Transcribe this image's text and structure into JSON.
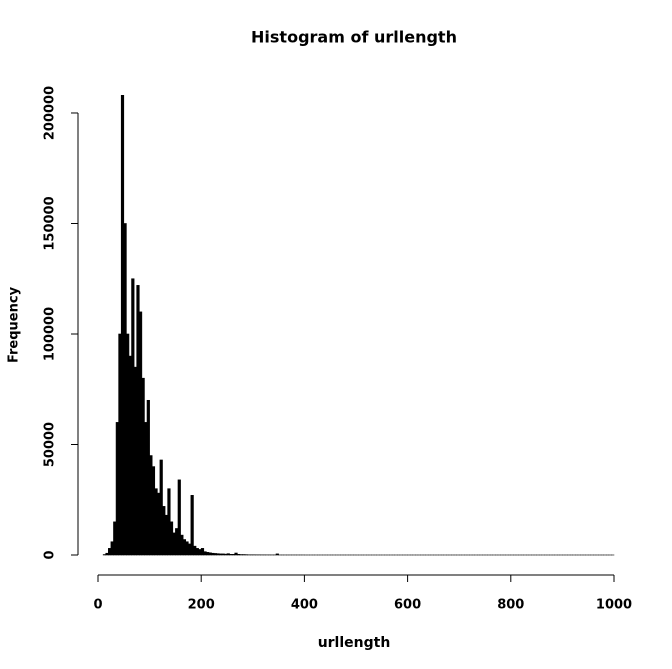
{
  "chart_data": {
    "type": "histogram",
    "title": "Histogram of urllength",
    "xlabel": "urllength",
    "ylabel": "Frequency",
    "color": "#000000",
    "bins": [
      0,
      5,
      10,
      15,
      20,
      25,
      30,
      35,
      40,
      45,
      50,
      55,
      60,
      65,
      70,
      75,
      80,
      85,
      90,
      95,
      100,
      105,
      110,
      115,
      120,
      125,
      130,
      135,
      140,
      145,
      150,
      155,
      160,
      165,
      170,
      175,
      180,
      185,
      190,
      195,
      200,
      205,
      210,
      215,
      220,
      225,
      230,
      235,
      240,
      245,
      250,
      255,
      260,
      265,
      270,
      275,
      280,
      285,
      290,
      295,
      300,
      305,
      310,
      315,
      320,
      325,
      330,
      335,
      340,
      345,
      350,
      355,
      360,
      365,
      370,
      375,
      380,
      385,
      390,
      395,
      400,
      405,
      410,
      415,
      420,
      425,
      430,
      435,
      440,
      445,
      450,
      455,
      460,
      465,
      470,
      475,
      480,
      485,
      490,
      495,
      500,
      505,
      510,
      515,
      520,
      525,
      530,
      535,
      540,
      545,
      550,
      555,
      560,
      565,
      570,
      575,
      580,
      585,
      590,
      595,
      600,
      605,
      610,
      615,
      620,
      625,
      630,
      635,
      640,
      645,
      650,
      655,
      660,
      665,
      670,
      675,
      680,
      685,
      690,
      695,
      700,
      705,
      710,
      715,
      720,
      725,
      730,
      735,
      740,
      745,
      750,
      755,
      760,
      765,
      770,
      775,
      780,
      785,
      790,
      795,
      800,
      805,
      810,
      815,
      820,
      825,
      830,
      835,
      840,
      845,
      850,
      855,
      860,
      865,
      870,
      875,
      880,
      885,
      890,
      895,
      900,
      905,
      910,
      915,
      920,
      925,
      930,
      935,
      940,
      945,
      950,
      955,
      960,
      965,
      970,
      975,
      980,
      985,
      990,
      995,
      1000
    ],
    "values": [
      0,
      0,
      200,
      800,
      3000,
      6000,
      15000,
      60000,
      100000,
      208000,
      150000,
      100000,
      90000,
      125000,
      85000,
      122000,
      110000,
      80000,
      60000,
      70000,
      45000,
      40000,
      30000,
      28000,
      43000,
      22000,
      18000,
      30000,
      15000,
      10000,
      12000,
      34000,
      9000,
      7000,
      6000,
      5000,
      27000,
      4000,
      3000,
      2500,
      3000,
      1500,
      1200,
      1000,
      800,
      700,
      600,
      500,
      500,
      400,
      600,
      300,
      300,
      900,
      300,
      200,
      200,
      150,
      100,
      100,
      100,
      80,
      80,
      60,
      60,
      50,
      50,
      40,
      40,
      500,
      20,
      20,
      20,
      20,
      20,
      20,
      20,
      20,
      20,
      20,
      10,
      10,
      10,
      10,
      10,
      10,
      10,
      10,
      10,
      10,
      10,
      10,
      10,
      10,
      10,
      10,
      10,
      10,
      10,
      10,
      5,
      5,
      5,
      5,
      5,
      5,
      5,
      5,
      5,
      5,
      5,
      5,
      5,
      5,
      5,
      5,
      5,
      5,
      5,
      5,
      5,
      5,
      5,
      5,
      5,
      5,
      5,
      5,
      5,
      5,
      5,
      5,
      5,
      5,
      5,
      5,
      5,
      5,
      5,
      5,
      5,
      5,
      5,
      5,
      5,
      5,
      5,
      5,
      5,
      5,
      5,
      5,
      5,
      5,
      5,
      5,
      5,
      5,
      5,
      5,
      5,
      5,
      5,
      5,
      5,
      5,
      5,
      5,
      5,
      5,
      5,
      5,
      5,
      5,
      5,
      5,
      5,
      5,
      5,
      5,
      5,
      5,
      5,
      5,
      5,
      5,
      5,
      5,
      5,
      5,
      5,
      5,
      5,
      5,
      5,
      5,
      5,
      5,
      5,
      5
    ],
    "xlim": [
      0,
      1000
    ],
    "ylim": [
      0,
      208000
    ],
    "xticks": [
      0,
      200,
      400,
      600,
      800,
      1000
    ],
    "yticks": [
      0,
      50000,
      100000,
      150000,
      200000
    ]
  }
}
